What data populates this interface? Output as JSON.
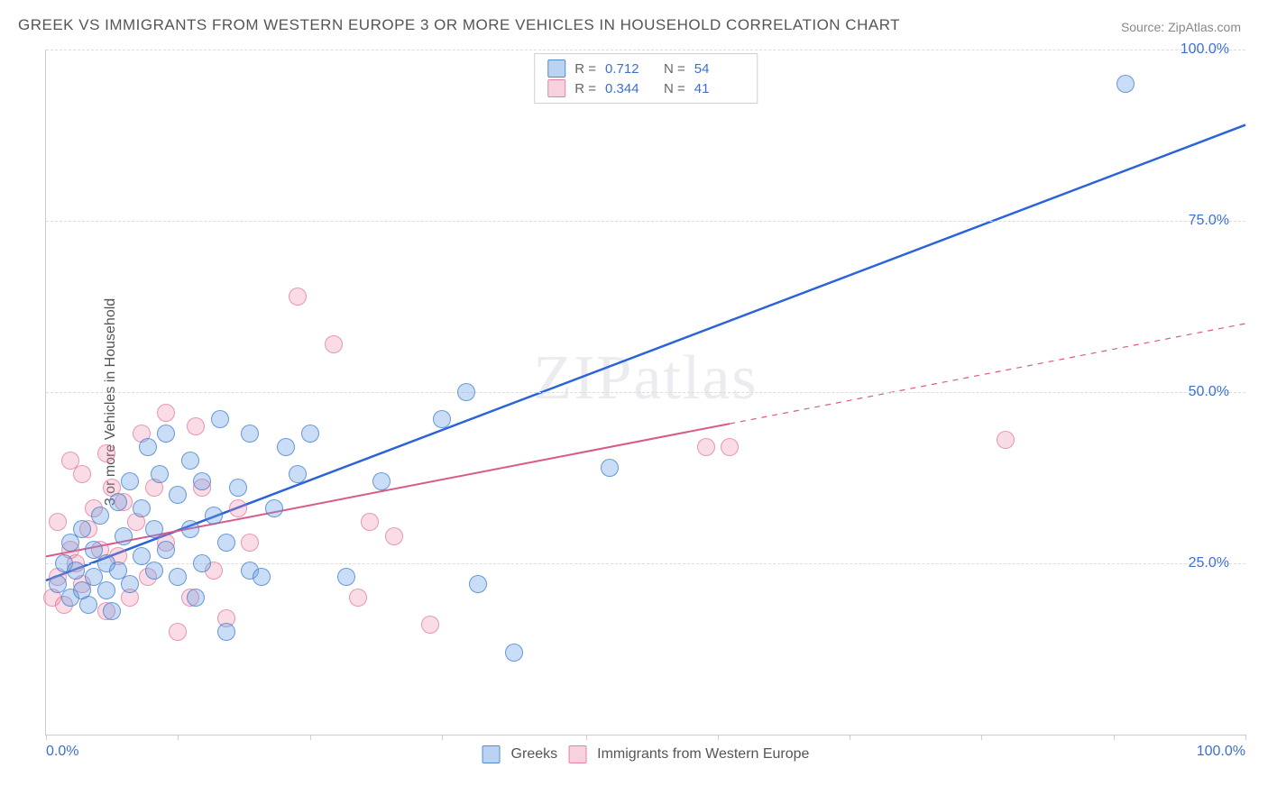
{
  "chart": {
    "type": "scatter",
    "title": "GREEK VS IMMIGRANTS FROM WESTERN EUROPE 3 OR MORE VEHICLES IN HOUSEHOLD CORRELATION CHART",
    "source": "Source: ZipAtlas.com",
    "ylabel": "3 or more Vehicles in Household",
    "watermark": "ZIPatlas",
    "background_color": "#ffffff",
    "grid_color": "#dddddd",
    "axis_color": "#cccccc",
    "tick_label_color": "#3b6fd6",
    "xlim": [
      0,
      100
    ],
    "ylim": [
      0,
      100
    ],
    "xtick_labels": {
      "0": "0.0%",
      "100": "100.0%"
    },
    "ytick_labels": {
      "25": "25.0%",
      "50": "50.0%",
      "75": "75.0%",
      "100": "100.0%"
    },
    "xtick_positions": [
      0,
      11,
      22,
      33,
      45,
      56,
      67,
      78,
      89,
      100
    ],
    "marker_radius": 9,
    "series": [
      {
        "name": "Greeks",
        "label": "Greeks",
        "fill_color": "rgba(104,157,228,0.35)",
        "stroke_color": "rgba(60,120,200,0.7)",
        "line_color": "#2b63d8",
        "line_width": 2.5,
        "line_dash_after_x": 100,
        "R": "0.712",
        "N": "54",
        "trend": {
          "x1": 0,
          "y1": 22.5,
          "x2": 100,
          "y2": 89
        },
        "points": [
          [
            1,
            22
          ],
          [
            1.5,
            25
          ],
          [
            2,
            20
          ],
          [
            2,
            28
          ],
          [
            2.5,
            24
          ],
          [
            3,
            21
          ],
          [
            3,
            30
          ],
          [
            3.5,
            19
          ],
          [
            4,
            23
          ],
          [
            4,
            27
          ],
          [
            4.5,
            32
          ],
          [
            5,
            21
          ],
          [
            5,
            25
          ],
          [
            5.5,
            18
          ],
          [
            6,
            24
          ],
          [
            6,
            34
          ],
          [
            6.5,
            29
          ],
          [
            7,
            22
          ],
          [
            7,
            37
          ],
          [
            8,
            26
          ],
          [
            8,
            33
          ],
          [
            8.5,
            42
          ],
          [
            9,
            30
          ],
          [
            9,
            24
          ],
          [
            9.5,
            38
          ],
          [
            10,
            44
          ],
          [
            10,
            27
          ],
          [
            11,
            23
          ],
          [
            11,
            35
          ],
          [
            12,
            40
          ],
          [
            12,
            30
          ],
          [
            12.5,
            20
          ],
          [
            13,
            37
          ],
          [
            13,
            25
          ],
          [
            14,
            32
          ],
          [
            14.5,
            46
          ],
          [
            15,
            15
          ],
          [
            15,
            28
          ],
          [
            16,
            36
          ],
          [
            17,
            24
          ],
          [
            17,
            44
          ],
          [
            18,
            23
          ],
          [
            19,
            33
          ],
          [
            20,
            42
          ],
          [
            21,
            38
          ],
          [
            22,
            44
          ],
          [
            25,
            23
          ],
          [
            28,
            37
          ],
          [
            33,
            46
          ],
          [
            35,
            50
          ],
          [
            36,
            22
          ],
          [
            47,
            39
          ],
          [
            39,
            12
          ],
          [
            90,
            95
          ]
        ]
      },
      {
        "name": "Immigrants from Western Europe",
        "label": "Immigrants from Western Europe",
        "fill_color": "rgba(235,140,170,0.3)",
        "stroke_color": "rgba(220,100,140,0.6)",
        "line_color": "#d85a8a",
        "line_width": 2,
        "line_dash_after_x": 57,
        "R": "0.344",
        "N": "41",
        "trend": {
          "x1": 0,
          "y1": 26,
          "x2": 100,
          "y2": 60
        },
        "points": [
          [
            0.5,
            20
          ],
          [
            1,
            23
          ],
          [
            1,
            31
          ],
          [
            1.5,
            19
          ],
          [
            2,
            27
          ],
          [
            2,
            40
          ],
          [
            2.5,
            25
          ],
          [
            3,
            38
          ],
          [
            3,
            22
          ],
          [
            3.5,
            30
          ],
          [
            4,
            33
          ],
          [
            4.5,
            27
          ],
          [
            5,
            41
          ],
          [
            5,
            18
          ],
          [
            5.5,
            36
          ],
          [
            6,
            26
          ],
          [
            6.5,
            34
          ],
          [
            7,
            20
          ],
          [
            7.5,
            31
          ],
          [
            8,
            44
          ],
          [
            8.5,
            23
          ],
          [
            9,
            36
          ],
          [
            10,
            47
          ],
          [
            10,
            28
          ],
          [
            11,
            15
          ],
          [
            12,
            20
          ],
          [
            12.5,
            45
          ],
          [
            13,
            36
          ],
          [
            14,
            24
          ],
          [
            15,
            17
          ],
          [
            16,
            33
          ],
          [
            17,
            28
          ],
          [
            21,
            64
          ],
          [
            24,
            57
          ],
          [
            26,
            20
          ],
          [
            27,
            31
          ],
          [
            29,
            29
          ],
          [
            32,
            16
          ],
          [
            55,
            42
          ],
          [
            57,
            42
          ],
          [
            80,
            43
          ]
        ]
      }
    ],
    "legend_top": {
      "rows": [
        {
          "swatch_fill": "rgba(104,157,228,0.45)",
          "swatch_stroke": "rgba(60,120,200,0.8)",
          "R_label": "R =",
          "R_val": "0.712",
          "N_label": "N =",
          "N_val": "54"
        },
        {
          "swatch_fill": "rgba(235,140,170,0.4)",
          "swatch_stroke": "rgba(220,100,140,0.7)",
          "R_label": "R =",
          "R_val": "0.344",
          "N_label": "N =",
          "N_val": "41"
        }
      ]
    },
    "legend_bottom": {
      "items": [
        {
          "swatch_fill": "rgba(104,157,228,0.45)",
          "swatch_stroke": "rgba(60,120,200,0.8)",
          "label": "Greeks"
        },
        {
          "swatch_fill": "rgba(235,140,170,0.4)",
          "swatch_stroke": "rgba(220,100,140,0.7)",
          "label": "Immigrants from Western Europe"
        }
      ]
    }
  }
}
